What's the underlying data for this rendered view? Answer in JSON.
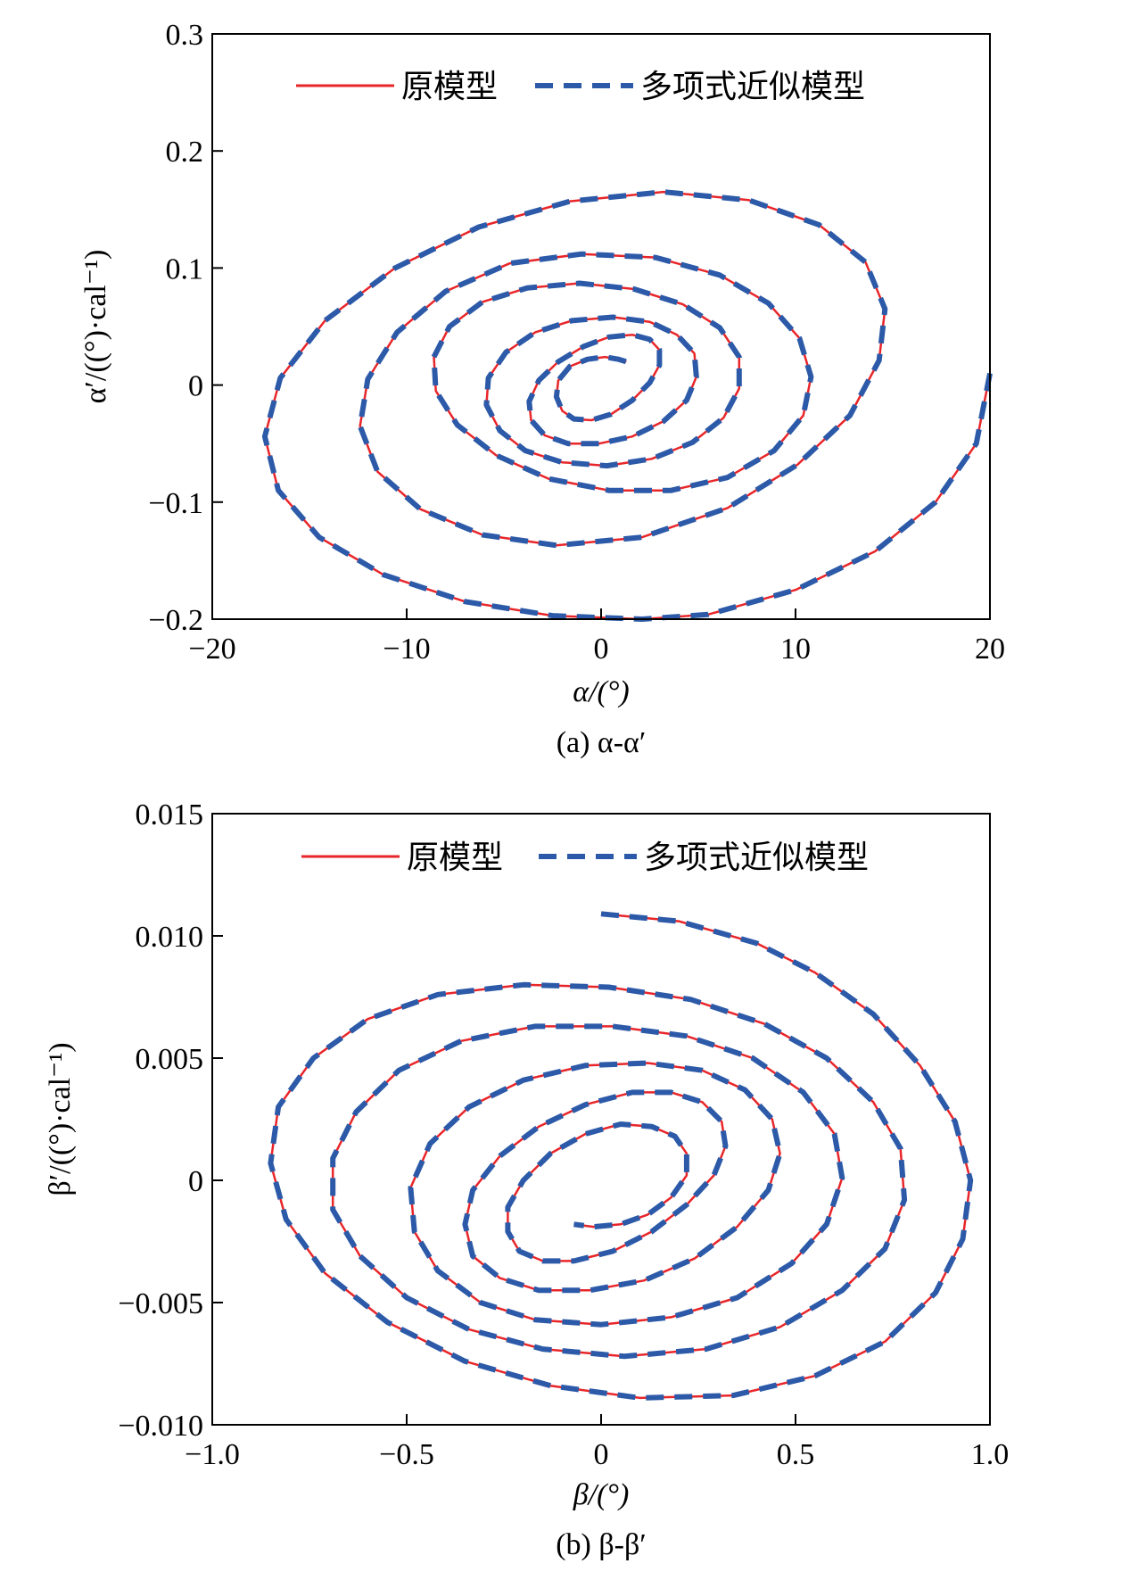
{
  "chart_data": [
    {
      "type": "line",
      "panel": "a",
      "caption": "(a) α-α′",
      "xlabel": "α/(°)",
      "ylabel": "α′/((°)·cal⁻¹)",
      "xlim": [
        -20,
        20
      ],
      "ylim": [
        -0.2,
        0.3
      ],
      "xticks": [
        -20,
        -10,
        0,
        10,
        20
      ],
      "xtick_labels": [
        "−20",
        "−10",
        "0",
        "10",
        "20"
      ],
      "yticks": [
        -0.2,
        -0.1,
        0,
        0.1,
        0.2,
        0.3
      ],
      "ytick_labels": [
        "−0.2",
        "−0.1",
        "0",
        "0.1",
        "0.2",
        "0.3"
      ],
      "grid": false,
      "legend_position": "top",
      "series": [
        {
          "name": "原模型",
          "color": "#e8262a",
          "style": "solid",
          "x": [
            20.0,
            19.3,
            17.2,
            14.1,
            10.0,
            5.5,
            2.1,
            -2.5,
            -7.0,
            -11.2,
            -14.5,
            -16.6,
            -17.3,
            -16.5,
            -14.2,
            -10.6,
            -6.3,
            -1.6,
            3.2,
            7.6,
            11.2,
            13.6,
            14.6,
            14.3,
            12.8,
            10.1,
            6.5,
            2.1,
            -2.3,
            -6.1,
            -9.3,
            -11.5,
            -12.4,
            -12.0,
            -10.5,
            -8.0,
            -4.7,
            -1.0,
            2.8,
            6.1,
            8.6,
            10.2,
            10.8,
            10.4,
            8.9,
            6.5,
            3.6,
            0.4,
            -2.7,
            -5.4,
            -7.4,
            -8.5,
            -8.6,
            -7.8,
            -6.1,
            -3.8,
            -1.1,
            1.7,
            4.2,
            6.1,
            7.1,
            7.1,
            6.3,
            4.7,
            2.6,
            0.3,
            -2.0,
            -3.9,
            -5.2,
            -5.9,
            -5.8,
            -4.9,
            -3.4,
            -1.5,
            0.6,
            2.5,
            3.9,
            4.8,
            4.9,
            4.4,
            3.2,
            1.6,
            -0.1,
            -1.7,
            -2.9,
            -3.6,
            -3.7,
            -3.2,
            -2.2,
            -0.9,
            0.4,
            1.6,
            2.5,
            3.0,
            3.0,
            2.5,
            1.6,
            0.5,
            -0.5,
            -1.4,
            -2.0,
            -2.3,
            -2.2,
            -1.6,
            -0.7,
            0.2,
            0.9,
            1.3
          ],
          "y": [
            0.01,
            -0.05,
            -0.1,
            -0.142,
            -0.175,
            -0.196,
            -0.2,
            -0.197,
            -0.185,
            -0.162,
            -0.13,
            -0.09,
            -0.044,
            0.006,
            0.055,
            0.1,
            0.135,
            0.157,
            0.165,
            0.158,
            0.137,
            0.105,
            0.065,
            0.021,
            -0.026,
            -0.068,
            -0.105,
            -0.13,
            -0.137,
            -0.128,
            -0.106,
            -0.074,
            -0.035,
            0.005,
            0.045,
            0.08,
            0.104,
            0.112,
            0.109,
            0.094,
            0.07,
            0.04,
            0.007,
            -0.026,
            -0.056,
            -0.079,
            -0.09,
            -0.09,
            -0.08,
            -0.06,
            -0.034,
            -0.005,
            0.024,
            0.05,
            0.071,
            0.083,
            0.087,
            0.082,
            0.069,
            0.049,
            0.024,
            -0.003,
            -0.028,
            -0.049,
            -0.063,
            -0.069,
            -0.066,
            -0.056,
            -0.039,
            -0.017,
            0.006,
            0.028,
            0.045,
            0.055,
            0.058,
            0.054,
            0.043,
            0.027,
            0.007,
            -0.013,
            -0.031,
            -0.044,
            -0.05,
            -0.05,
            -0.043,
            -0.03,
            -0.014,
            0.004,
            0.02,
            0.033,
            0.041,
            0.043,
            0.039,
            0.03,
            0.017,
            0.002,
            -0.013,
            -0.025,
            -0.03,
            -0.029,
            -0.022,
            -0.01,
            0.004,
            0.016,
            0.022,
            0.024,
            0.022,
            0.02
          ]
        },
        {
          "name": "多项式近似模型",
          "color": "#2c5aa8",
          "style": "dashed",
          "x": [
            20.0,
            19.3,
            17.2,
            14.1,
            10.0,
            5.5,
            2.1,
            -2.5,
            -7.0,
            -11.2,
            -14.5,
            -16.6,
            -17.3,
            -16.5,
            -14.2,
            -10.6,
            -6.3,
            -1.6,
            3.2,
            7.6,
            11.2,
            13.6,
            14.6,
            14.3,
            12.8,
            10.1,
            6.5,
            2.1,
            -2.3,
            -6.1,
            -9.3,
            -11.5,
            -12.4,
            -12.0,
            -10.5,
            -8.0,
            -4.7,
            -1.0,
            2.8,
            6.1,
            8.6,
            10.2,
            10.8,
            10.4,
            8.9,
            6.5,
            3.6,
            0.4,
            -2.7,
            -5.4,
            -7.4,
            -8.5,
            -8.6,
            -7.8,
            -6.1,
            -3.8,
            -1.1,
            1.7,
            4.2,
            6.1,
            7.1,
            7.1,
            6.3,
            4.7,
            2.6,
            0.3,
            -2.0,
            -3.9,
            -5.2,
            -5.9,
            -5.8,
            -4.9,
            -3.4,
            -1.5,
            0.6,
            2.5,
            3.9,
            4.8,
            4.9,
            4.4,
            3.2,
            1.6,
            -0.1,
            -1.7,
            -2.9,
            -3.6,
            -3.7,
            -3.2,
            -2.2,
            -0.9,
            0.4,
            1.6,
            2.5,
            3.0,
            3.0,
            2.5,
            1.6,
            0.5,
            -0.5,
            -1.4,
            -2.0,
            -2.3,
            -2.2,
            -1.6,
            -0.7,
            0.2,
            0.9,
            1.3
          ],
          "y": [
            0.01,
            -0.05,
            -0.1,
            -0.142,
            -0.175,
            -0.196,
            -0.2,
            -0.197,
            -0.185,
            -0.162,
            -0.13,
            -0.09,
            -0.044,
            0.006,
            0.055,
            0.1,
            0.135,
            0.157,
            0.165,
            0.158,
            0.137,
            0.105,
            0.065,
            0.021,
            -0.026,
            -0.068,
            -0.105,
            -0.13,
            -0.137,
            -0.128,
            -0.106,
            -0.074,
            -0.035,
            0.005,
            0.045,
            0.08,
            0.104,
            0.112,
            0.109,
            0.094,
            0.07,
            0.04,
            0.007,
            -0.026,
            -0.056,
            -0.079,
            -0.09,
            -0.09,
            -0.08,
            -0.06,
            -0.034,
            -0.005,
            0.024,
            0.05,
            0.071,
            0.083,
            0.087,
            0.082,
            0.069,
            0.049,
            0.024,
            -0.003,
            -0.028,
            -0.049,
            -0.063,
            -0.069,
            -0.066,
            -0.056,
            -0.039,
            -0.017,
            0.006,
            0.028,
            0.045,
            0.055,
            0.058,
            0.054,
            0.043,
            0.027,
            0.007,
            -0.013,
            -0.031,
            -0.044,
            -0.05,
            -0.05,
            -0.043,
            -0.03,
            -0.014,
            0.004,
            0.02,
            0.033,
            0.041,
            0.043,
            0.039,
            0.03,
            0.017,
            0.002,
            -0.013,
            -0.025,
            -0.03,
            -0.029,
            -0.022,
            -0.01,
            0.004,
            0.016,
            0.022,
            0.024,
            0.022,
            0.02
          ]
        }
      ]
    },
    {
      "type": "line",
      "panel": "b",
      "caption": "(b) β-β′",
      "xlabel": "β/(°)",
      "ylabel": "β′/((°)·cal⁻¹)",
      "xlim": [
        -1.0,
        1.0
      ],
      "ylim": [
        -0.01,
        0.015
      ],
      "xticks": [
        -1.0,
        -0.5,
        0,
        0.5,
        1.0
      ],
      "xtick_labels": [
        "−1.0",
        "−0.5",
        "0",
        "0.5",
        "1.0"
      ],
      "yticks": [
        -0.01,
        -0.005,
        0,
        0.005,
        0.01,
        0.015
      ],
      "ytick_labels": [
        "−0.010",
        "−0.005",
        "0",
        "0.005",
        "0.010",
        "0.015"
      ],
      "grid": false,
      "legend_position": "top",
      "series": [
        {
          "name": "原模型",
          "color": "#e8262a",
          "style": "solid",
          "x": [
            0.0,
            0.2,
            0.4,
            0.55,
            0.7,
            0.82,
            0.91,
            0.95,
            0.93,
            0.86,
            0.73,
            0.55,
            0.34,
            0.1,
            -0.13,
            -0.35,
            -0.55,
            -0.71,
            -0.81,
            -0.85,
            -0.83,
            -0.74,
            -0.6,
            -0.42,
            -0.2,
            0.02,
            0.23,
            0.42,
            0.58,
            0.7,
            0.77,
            0.78,
            0.73,
            0.62,
            0.46,
            0.27,
            0.06,
            -0.15,
            -0.34,
            -0.5,
            -0.62,
            -0.69,
            -0.69,
            -0.63,
            -0.52,
            -0.36,
            -0.17,
            0.03,
            0.22,
            0.39,
            0.52,
            0.6,
            0.62,
            0.58,
            0.49,
            0.35,
            0.18,
            0.0,
            -0.17,
            -0.31,
            -0.42,
            -0.48,
            -0.49,
            -0.44,
            -0.34,
            -0.2,
            -0.04,
            0.12,
            0.26,
            0.37,
            0.44,
            0.46,
            0.43,
            0.35,
            0.24,
            0.11,
            -0.03,
            -0.16,
            -0.26,
            -0.33,
            -0.35,
            -0.33,
            -0.26,
            -0.16,
            -0.04,
            0.08,
            0.18,
            0.26,
            0.31,
            0.32,
            0.29,
            0.22,
            0.13,
            0.03,
            -0.07,
            -0.15,
            -0.21,
            -0.24,
            -0.24,
            -0.2,
            -0.13,
            -0.04,
            0.05,
            0.13,
            0.19,
            0.22,
            0.22,
            0.18,
            0.12,
            0.05,
            -0.02,
            -0.07
          ],
          "y": [
            0.0109,
            0.0106,
            0.0097,
            0.0085,
            0.0068,
            0.0047,
            0.0024,
            0.0,
            -0.0024,
            -0.0046,
            -0.0066,
            -0.008,
            -0.0088,
            -0.0089,
            -0.0084,
            -0.0074,
            -0.0058,
            -0.0038,
            -0.0016,
            0.0007,
            0.003,
            0.005,
            0.0066,
            0.0076,
            0.008,
            0.0079,
            0.0074,
            0.0064,
            0.005,
            0.0032,
            0.0013,
            -0.0008,
            -0.0028,
            -0.0045,
            -0.006,
            -0.0069,
            -0.0072,
            -0.0069,
            -0.0061,
            -0.0048,
            -0.0031,
            -0.0012,
            0.0009,
            0.0028,
            0.0045,
            0.0057,
            0.0063,
            0.0063,
            0.0059,
            0.005,
            0.0036,
            0.0019,
            0.0001,
            -0.0018,
            -0.0034,
            -0.0048,
            -0.0056,
            -0.0059,
            -0.0057,
            -0.005,
            -0.0037,
            -0.0021,
            -0.0003,
            0.0015,
            0.003,
            0.0041,
            0.0047,
            0.0048,
            0.0045,
            0.0037,
            0.0025,
            0.0011,
            -0.0004,
            -0.0019,
            -0.0032,
            -0.0041,
            -0.0045,
            -0.0045,
            -0.004,
            -0.0031,
            -0.0018,
            -0.0004,
            0.001,
            0.0022,
            0.0031,
            0.0036,
            0.0036,
            0.0032,
            0.0024,
            0.0014,
            0.0002,
            -0.001,
            -0.0021,
            -0.0029,
            -0.0033,
            -0.0033,
            -0.0029,
            -0.0021,
            -0.0011,
            0.0,
            0.0011,
            0.0019,
            0.0023,
            0.0022,
            0.0018,
            0.0011,
            0.0002,
            -0.0007,
            -0.0014,
            -0.0018,
            -0.0019,
            -0.0018
          ]
        },
        {
          "name": "多项式近似模型",
          "color": "#2c5aa8",
          "style": "dashed",
          "x": [
            0.0,
            0.2,
            0.4,
            0.55,
            0.7,
            0.82,
            0.91,
            0.95,
            0.93,
            0.86,
            0.73,
            0.55,
            0.34,
            0.1,
            -0.13,
            -0.35,
            -0.55,
            -0.71,
            -0.81,
            -0.85,
            -0.83,
            -0.74,
            -0.6,
            -0.42,
            -0.2,
            0.02,
            0.23,
            0.42,
            0.58,
            0.7,
            0.77,
            0.78,
            0.73,
            0.62,
            0.46,
            0.27,
            0.06,
            -0.15,
            -0.34,
            -0.5,
            -0.62,
            -0.69,
            -0.69,
            -0.63,
            -0.52,
            -0.36,
            -0.17,
            0.03,
            0.22,
            0.39,
            0.52,
            0.6,
            0.62,
            0.58,
            0.49,
            0.35,
            0.18,
            0.0,
            -0.17,
            -0.31,
            -0.42,
            -0.48,
            -0.49,
            -0.44,
            -0.34,
            -0.2,
            -0.04,
            0.12,
            0.26,
            0.37,
            0.44,
            0.46,
            0.43,
            0.35,
            0.24,
            0.11,
            -0.03,
            -0.16,
            -0.26,
            -0.33,
            -0.35,
            -0.33,
            -0.26,
            -0.16,
            -0.04,
            0.08,
            0.18,
            0.26,
            0.31,
            0.32,
            0.29,
            0.22,
            0.13,
            0.03,
            -0.07,
            -0.15,
            -0.21,
            -0.24,
            -0.24,
            -0.2,
            -0.13,
            -0.04,
            0.05,
            0.13,
            0.19,
            0.22,
            0.22,
            0.18,
            0.12,
            0.05,
            -0.02,
            -0.07
          ],
          "y": [
            0.0109,
            0.0106,
            0.0097,
            0.0085,
            0.0068,
            0.0047,
            0.0024,
            0.0,
            -0.0024,
            -0.0046,
            -0.0066,
            -0.008,
            -0.0088,
            -0.0089,
            -0.0084,
            -0.0074,
            -0.0058,
            -0.0038,
            -0.0016,
            0.0007,
            0.003,
            0.005,
            0.0066,
            0.0076,
            0.008,
            0.0079,
            0.0074,
            0.0064,
            0.005,
            0.0032,
            0.0013,
            -0.0008,
            -0.0028,
            -0.0045,
            -0.006,
            -0.0069,
            -0.0072,
            -0.0069,
            -0.0061,
            -0.0048,
            -0.0031,
            -0.0012,
            0.0009,
            0.0028,
            0.0045,
            0.0057,
            0.0063,
            0.0063,
            0.0059,
            0.005,
            0.0036,
            0.0019,
            0.0001,
            -0.0018,
            -0.0034,
            -0.0048,
            -0.0056,
            -0.0059,
            -0.0057,
            -0.005,
            -0.0037,
            -0.0021,
            -0.0003,
            0.0015,
            0.003,
            0.0041,
            0.0047,
            0.0048,
            0.0045,
            0.0037,
            0.0025,
            0.0011,
            -0.0004,
            -0.0019,
            -0.0032,
            -0.0041,
            -0.0045,
            -0.0045,
            -0.004,
            -0.0031,
            -0.0018,
            -0.0004,
            0.001,
            0.0022,
            0.0031,
            0.0036,
            0.0036,
            0.0032,
            0.0024,
            0.0014,
            0.0002,
            -0.001,
            -0.0021,
            -0.0029,
            -0.0033,
            -0.0033,
            -0.0029,
            -0.0021,
            -0.0011,
            0.0,
            0.0011,
            0.0019,
            0.0023,
            0.0022,
            0.0018,
            0.0011,
            0.0002,
            -0.0007,
            -0.0014,
            -0.0018,
            -0.0019,
            -0.0018
          ]
        }
      ]
    }
  ]
}
